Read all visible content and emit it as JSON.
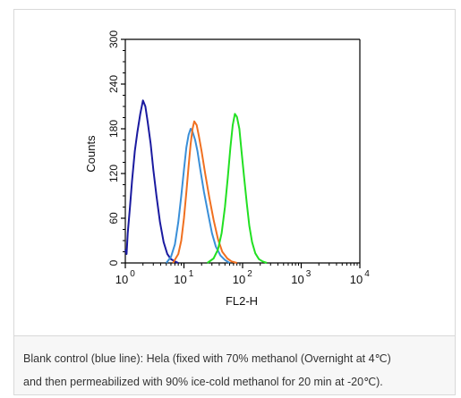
{
  "caption": {
    "line1": "Blank control (blue line): Hela (fixed with 70% methanol (Overnight at 4℃)",
    "line2": "and then permeabilized with 90% ice-cold methanol for 20 min at -20℃)."
  },
  "chart_data": {
    "type": "line",
    "title": "",
    "xlabel": "FL2-H",
    "ylabel": "Counts",
    "xscale": "log",
    "xlim": [
      1,
      10000
    ],
    "ylim": [
      0,
      300
    ],
    "x_ticks": [
      {
        "value": 1,
        "base": "10",
        "exp": "0"
      },
      {
        "value": 10,
        "base": "10",
        "exp": "1"
      },
      {
        "value": 100,
        "base": "10",
        "exp": "2"
      },
      {
        "value": 1000,
        "base": "10",
        "exp": "3"
      },
      {
        "value": 10000,
        "base": "10",
        "exp": "4"
      }
    ],
    "y_ticks": [
      "0",
      "60",
      "120",
      "180",
      "240",
      "300"
    ],
    "grid": false,
    "series": [
      {
        "color": "#1a1aa0",
        "x": [
          1.0,
          1.05,
          1.1,
          1.2,
          1.3,
          1.45,
          1.6,
          1.8,
          2.0,
          2.2,
          2.4,
          2.7,
          3.0,
          3.4,
          3.9,
          4.5,
          5.2,
          6.0,
          7.0,
          8.0
        ],
        "y": [
          18,
          12,
          40,
          75,
          110,
          150,
          175,
          200,
          218,
          210,
          190,
          160,
          125,
          90,
          55,
          28,
          12,
          5,
          2,
          0
        ]
      },
      {
        "color": "#3a8fd8",
        "x": [
          5.0,
          6.0,
          7.0,
          8.0,
          9.0,
          10.0,
          11.0,
          12.0,
          13.0,
          14.0,
          15.5,
          17.0,
          19.0,
          22.0,
          26.0,
          30.0,
          35.0,
          42.0,
          50.0,
          60.0
        ],
        "y": [
          0,
          8,
          25,
          55,
          90,
          125,
          155,
          172,
          180,
          176,
          165,
          150,
          125,
          95,
          65,
          40,
          22,
          10,
          4,
          0
        ]
      },
      {
        "color": "#f07020",
        "x": [
          6.5,
          8.0,
          9.0,
          10.0,
          11.0,
          12.0,
          13.0,
          14.0,
          15.0,
          16.5,
          18.0,
          20.0,
          23.0,
          27.0,
          32.0,
          38.0,
          45.0,
          55.0,
          65.0,
          80.0
        ],
        "y": [
          0,
          12,
          30,
          60,
          95,
          130,
          160,
          180,
          190,
          185,
          170,
          150,
          120,
          88,
          58,
          32,
          15,
          6,
          2,
          0
        ]
      },
      {
        "color": "#22e022",
        "x": [
          25.0,
          32.0,
          38.0,
          44.0,
          50.0,
          56.0,
          62.0,
          68.0,
          74.0,
          80.0,
          88.0,
          96.0,
          106.0,
          118.0,
          130.0,
          145.0,
          165.0,
          190.0,
          220.0,
          260.0
        ],
        "y": [
          0,
          6,
          18,
          40,
          75,
          115,
          155,
          185,
          200,
          196,
          180,
          150,
          115,
          80,
          50,
          28,
          13,
          5,
          2,
          0
        ]
      }
    ]
  }
}
